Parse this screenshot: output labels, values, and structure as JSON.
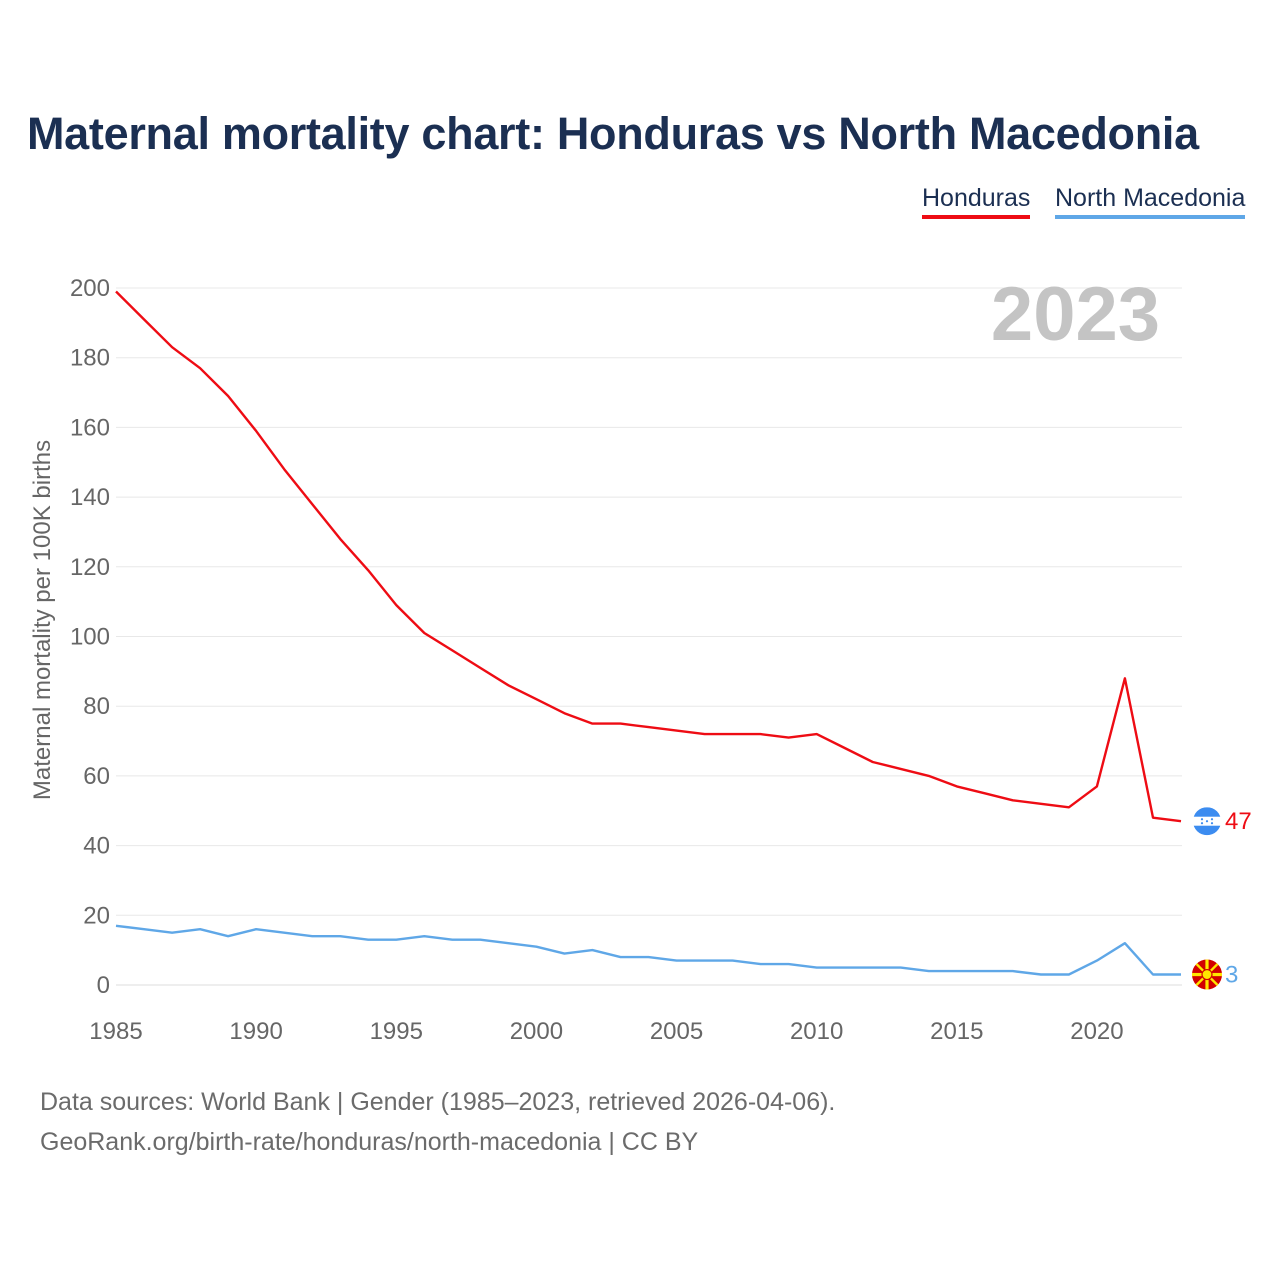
{
  "title": "Maternal mortality chart: Honduras vs North Macedonia",
  "legend": [
    {
      "label": "Honduras",
      "color": "#ee0c14"
    },
    {
      "label": "North Macedonia",
      "color": "#5fa7e7"
    }
  ],
  "footer": {
    "line1": "Data sources: World Bank | Gender (1985–2023, retrieved 2026-04-06).",
    "line2": "GeoRank.org/birth-rate/honduras/north-macedonia | CC BY"
  },
  "chart_data": {
    "type": "line",
    "title": "Maternal mortality chart: Honduras vs North Macedonia",
    "ylabel": "Maternal mortality per 100K births",
    "xlabel": "",
    "year_label": "2023",
    "xlim": [
      1985,
      2023
    ],
    "ylim": [
      0,
      200
    ],
    "x_ticks": [
      1985,
      1990,
      1995,
      2000,
      2005,
      2010,
      2015,
      2020
    ],
    "y_ticks": [
      0,
      20,
      40,
      60,
      80,
      100,
      120,
      140,
      160,
      180,
      200
    ],
    "grid": true,
    "x": [
      1985,
      1986,
      1987,
      1988,
      1989,
      1990,
      1991,
      1992,
      1993,
      1994,
      1995,
      1996,
      1997,
      1998,
      1999,
      2000,
      2001,
      2002,
      2003,
      2004,
      2005,
      2006,
      2007,
      2008,
      2009,
      2010,
      2011,
      2012,
      2013,
      2014,
      2015,
      2016,
      2017,
      2018,
      2019,
      2020,
      2021,
      2022,
      2023
    ],
    "series": [
      {
        "name": "Honduras",
        "color": "#ee0c14",
        "end_label": "47",
        "flag": "honduras-flag-icon",
        "values": [
          199,
          191,
          183,
          177,
          169,
          159,
          148,
          138,
          128,
          119,
          109,
          101,
          96,
          91,
          86,
          82,
          78,
          75,
          75,
          74,
          73,
          72,
          72,
          72,
          71,
          72,
          68,
          64,
          62,
          60,
          57,
          55,
          53,
          52,
          51,
          57,
          88,
          48,
          47
        ]
      },
      {
        "name": "North Macedonia",
        "color": "#5fa7e7",
        "end_label": "3",
        "flag": "north-macedonia-flag-icon",
        "values": [
          17,
          16,
          15,
          16,
          14,
          16,
          15,
          14,
          14,
          13,
          13,
          14,
          13,
          13,
          12,
          11,
          9,
          10,
          8,
          8,
          7,
          7,
          7,
          6,
          6,
          5,
          5,
          5,
          5,
          4,
          4,
          4,
          4,
          3,
          3,
          7,
          12,
          3,
          3
        ]
      }
    ]
  }
}
